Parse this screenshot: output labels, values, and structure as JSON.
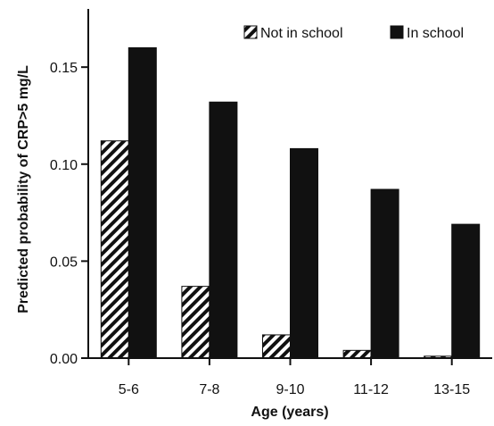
{
  "chart_data": {
    "type": "bar",
    "title": "",
    "xlabel": "Age (years)",
    "ylabel": "Predicted probability of CRP>5 mg/L",
    "categories": [
      "5-6",
      "7-8",
      "9-10",
      "11-12",
      "13-15"
    ],
    "series": [
      {
        "name": "Not in school",
        "values": [
          0.112,
          0.037,
          0.012,
          0.004,
          0.001
        ],
        "fill": "hatched",
        "color": "#111111"
      },
      {
        "name": "In school",
        "values": [
          0.16,
          0.132,
          0.108,
          0.087,
          0.069
        ],
        "fill": "solid",
        "color": "#111111"
      }
    ],
    "ylim": [
      0,
      0.18
    ],
    "yticks": [
      "0.00",
      "0.05",
      "0.10",
      "0.15"
    ],
    "legend_position": "top-right",
    "grid": false
  }
}
